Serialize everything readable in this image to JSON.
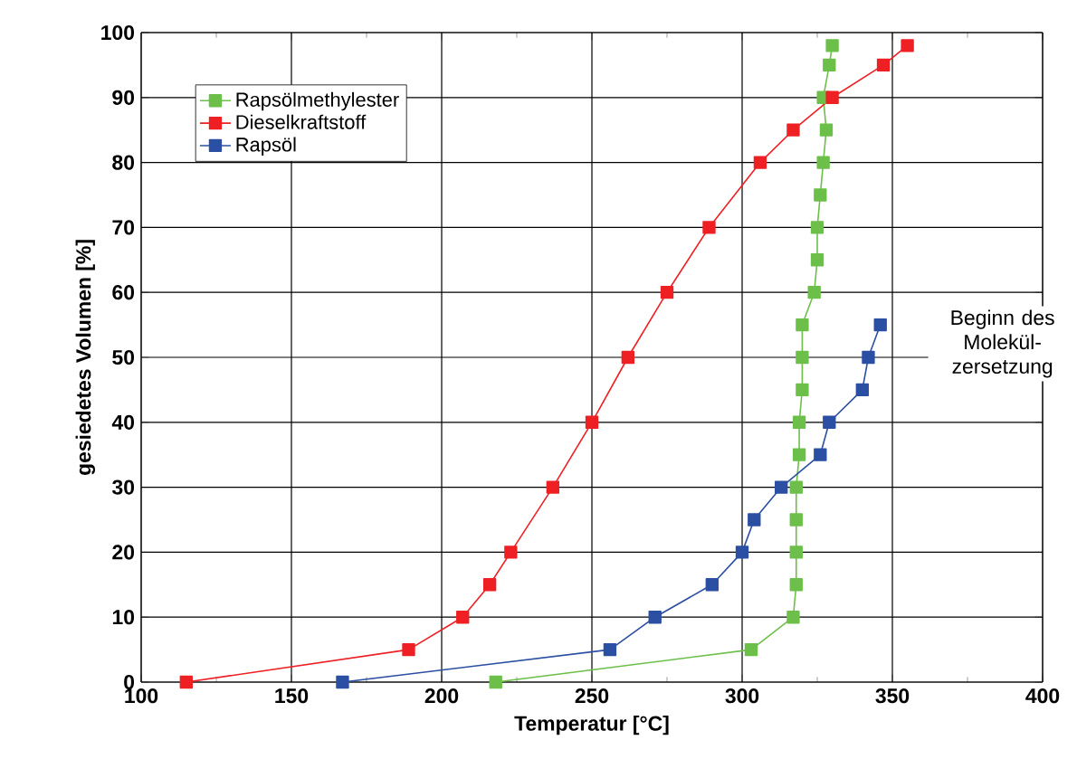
{
  "chart_data": {
    "type": "line",
    "xlabel": "Temperatur [°C]",
    "ylabel": "gesiedetes Volumen [%]",
    "xlim": [
      100,
      400
    ],
    "xticks": [
      100,
      150,
      200,
      250,
      300,
      350,
      400
    ],
    "ylim": [
      0,
      100
    ],
    "yticks": [
      0,
      10,
      20,
      30,
      40,
      50,
      60,
      70,
      80,
      90,
      100
    ],
    "grid": true,
    "legend": "top left",
    "marker": "square",
    "line_style": "solid",
    "annotations": [
      "Beginn des Molekül-zersetzung"
    ],
    "series": [
      {
        "name": "Rapsölmethylester",
        "color": "#6cc04a",
        "x": [
          218,
          303,
          317,
          318,
          318,
          318,
          318,
          319,
          319,
          320,
          320,
          320,
          324,
          325,
          325,
          326,
          327,
          328,
          327,
          329,
          330
        ],
        "values": [
          0,
          5,
          10,
          15,
          20,
          25,
          30,
          35,
          40,
          45,
          50,
          55,
          60,
          65,
          70,
          75,
          80,
          85,
          90,
          95,
          98
        ]
      },
      {
        "name": "Dieselkraftstoff",
        "color": "#ee2024",
        "x": [
          115,
          189,
          207,
          216,
          223,
          237,
          250,
          262,
          275,
          289,
          306,
          317,
          330,
          347,
          355
        ],
        "values": [
          0,
          5,
          10,
          15,
          20,
          30,
          40,
          50,
          60,
          70,
          80,
          85,
          90,
          95,
          98
        ]
      },
      {
        "name": "Rapsöl",
        "color": "#2b4fa2",
        "x": [
          167,
          256,
          271,
          290,
          300,
          304,
          313,
          326,
          329,
          340,
          342,
          346
        ],
        "values": [
          0,
          5,
          10,
          15,
          20,
          25,
          30,
          35,
          40,
          45,
          50,
          55
        ]
      }
    ]
  }
}
